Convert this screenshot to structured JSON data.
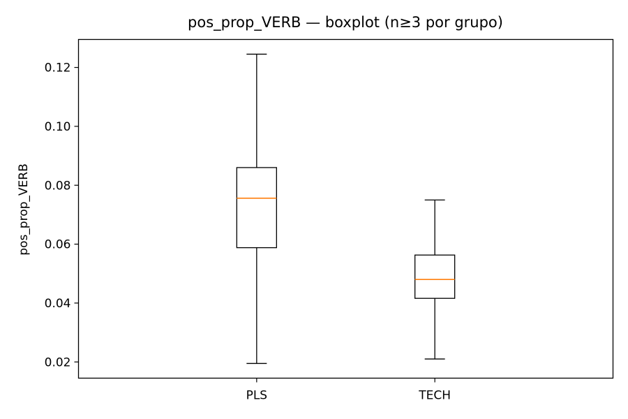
{
  "chart_data": {
    "type": "boxplot",
    "title": "pos_prop_VERB — boxplot (n≥3 por grupo)",
    "xlabel": "",
    "ylabel": "pos_prop_VERB",
    "categories": [
      "PLS",
      "TECH"
    ],
    "boxes": [
      {
        "category": "PLS",
        "whisker_low": 0.0195,
        "q1": 0.0588,
        "median": 0.0756,
        "q3": 0.086,
        "whisker_high": 0.1245
      },
      {
        "category": "TECH",
        "whisker_low": 0.021,
        "q1": 0.0416,
        "median": 0.048,
        "q3": 0.0563,
        "whisker_high": 0.075
      }
    ],
    "ylim": [
      0.0145,
      0.1295
    ],
    "yticks": [
      0.02,
      0.04,
      0.06,
      0.08,
      0.1,
      0.12
    ],
    "ytick_labels": [
      "0.02",
      "0.04",
      "0.06",
      "0.08",
      "0.10",
      "0.12"
    ],
    "grid": false,
    "colors": {
      "box": "#000000",
      "median": "#ff7f0e"
    }
  }
}
